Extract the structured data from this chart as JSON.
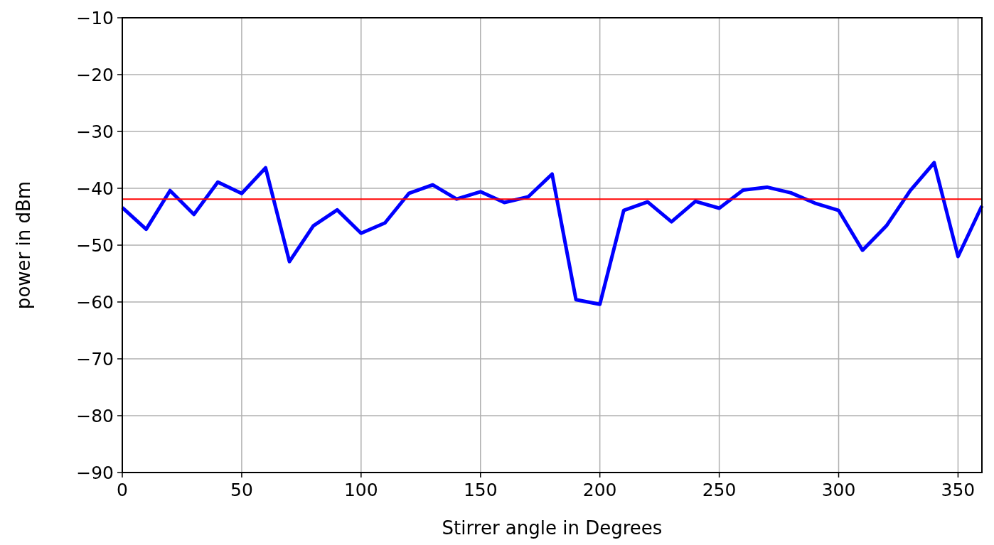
{
  "chart_data": {
    "type": "line",
    "xlabel": "Stirrer angle in Degrees",
    "ylabel": "power in dBm",
    "x": [
      0,
      10,
      20,
      30,
      40,
      50,
      60,
      70,
      80,
      90,
      100,
      110,
      120,
      130,
      140,
      150,
      160,
      170,
      180,
      190,
      200,
      210,
      220,
      230,
      240,
      250,
      260,
      270,
      280,
      290,
      300,
      310,
      320,
      330,
      340,
      350,
      360
    ],
    "series": [
      {
        "color": "#0000ff",
        "values": [
          -43.4,
          -47.2,
          -40.4,
          -44.6,
          -38.9,
          -40.9,
          -36.4,
          -52.9,
          -46.6,
          -43.8,
          -47.9,
          -46.1,
          -40.9,
          -39.4,
          -41.9,
          -40.6,
          -42.5,
          -41.5,
          -37.5,
          -59.6,
          -60.4,
          -43.9,
          -42.4,
          -45.9,
          -42.3,
          -43.5,
          -40.3,
          -39.8,
          -40.8,
          -42.6,
          -43.9,
          -50.9,
          -46.6,
          -40.4,
          -35.5,
          -52,
          -43.1
        ]
      }
    ],
    "xlim": [
      0,
      360
    ],
    "xticks": [
      0,
      50,
      100,
      150,
      200,
      250,
      300,
      350
    ],
    "ylim": [
      -90,
      -10
    ],
    "yticks": [
      -90,
      -80,
      -70,
      -60,
      -50,
      -40,
      -30,
      -20,
      -10
    ],
    "ref_lines": [
      {
        "axis": "y",
        "value": -41.9,
        "color": "#ff0000"
      }
    ],
    "grid": true,
    "marker": "none",
    "line_style": "solid"
  }
}
